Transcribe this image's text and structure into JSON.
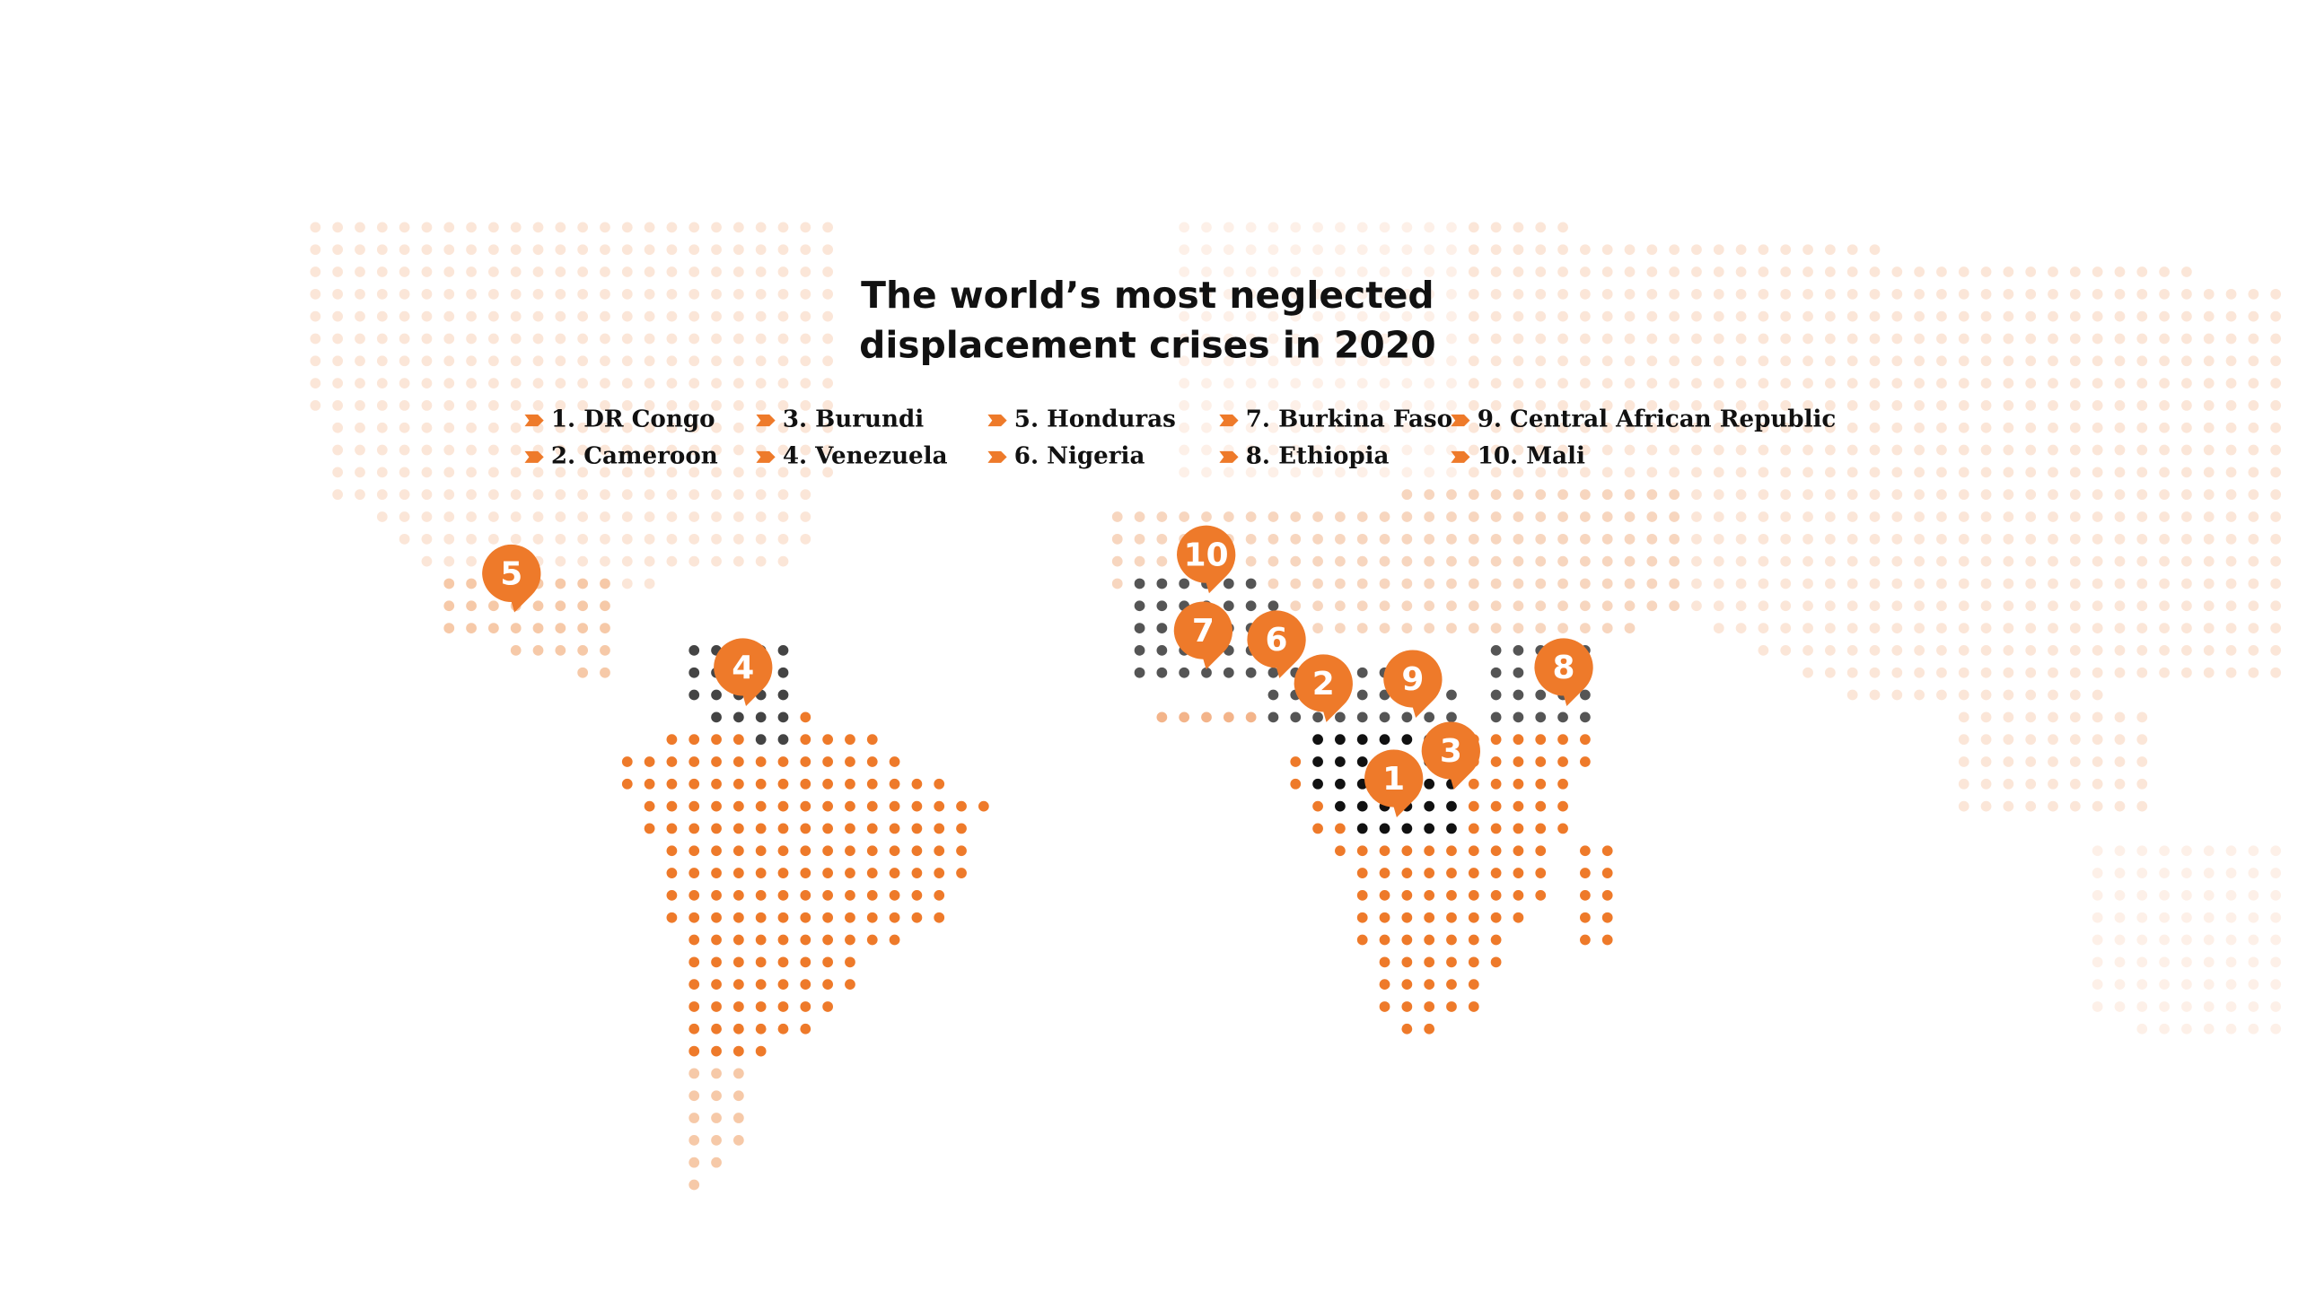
{
  "title_lines": [
    "The world’s most neglected",
    "displacement crises in 2020"
  ],
  "legend": [
    "1. DR Congo",
    "2. Cameroon",
    "3. Burundi",
    "4. Venezuela",
    "5. Honduras",
    "6. Nigeria",
    "7. Burkina Faso",
    "8. Ethiopia",
    "9. Central African Republic",
    "10. Mali"
  ],
  "pins": [
    "1",
    "2",
    "3",
    "4",
    "5",
    "6",
    "7",
    "8",
    "9",
    "10"
  ]
}
